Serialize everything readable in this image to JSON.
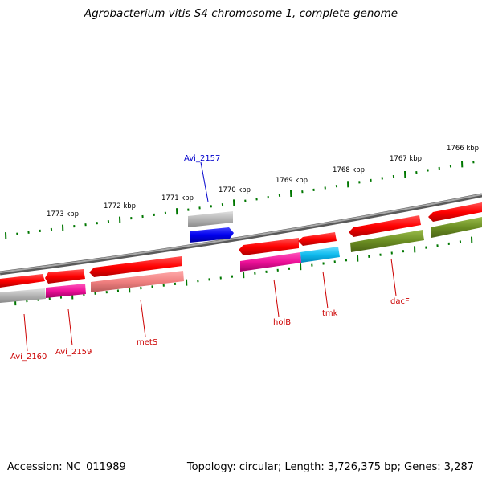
{
  "title": "Agrobacterium vitis S4 chromosome 1, complete genome",
  "footer": {
    "accession": "Accession: NC_011989",
    "stats": "Topology: circular; Length: 3,726,375 bp; Genes: 3,287"
  },
  "ruler_labels": [
    "1773 kbp",
    "1772 kbp",
    "1771 kbp",
    "1770 kbp",
    "1769 kbp",
    "1768 kbp",
    "1767 kbp",
    "1766 kbp"
  ],
  "gene_labels": [
    "Avi_2157",
    "Avi_2160",
    "Avi_2159",
    "metS",
    "holB",
    "tmk",
    "dacF"
  ],
  "colors": {
    "backbone": "#808080",
    "ruler_ticks": "#007700",
    "cds_forward": "#ff0000",
    "label_red": "#cc0000",
    "label_blue": "#0000cc",
    "gray": "#b4b4b4",
    "blue": "#0000ee",
    "magenta": "#ee1199",
    "cyan": "#11bbee",
    "salmon": "#f08080",
    "olive": "#6b8e23"
  }
}
